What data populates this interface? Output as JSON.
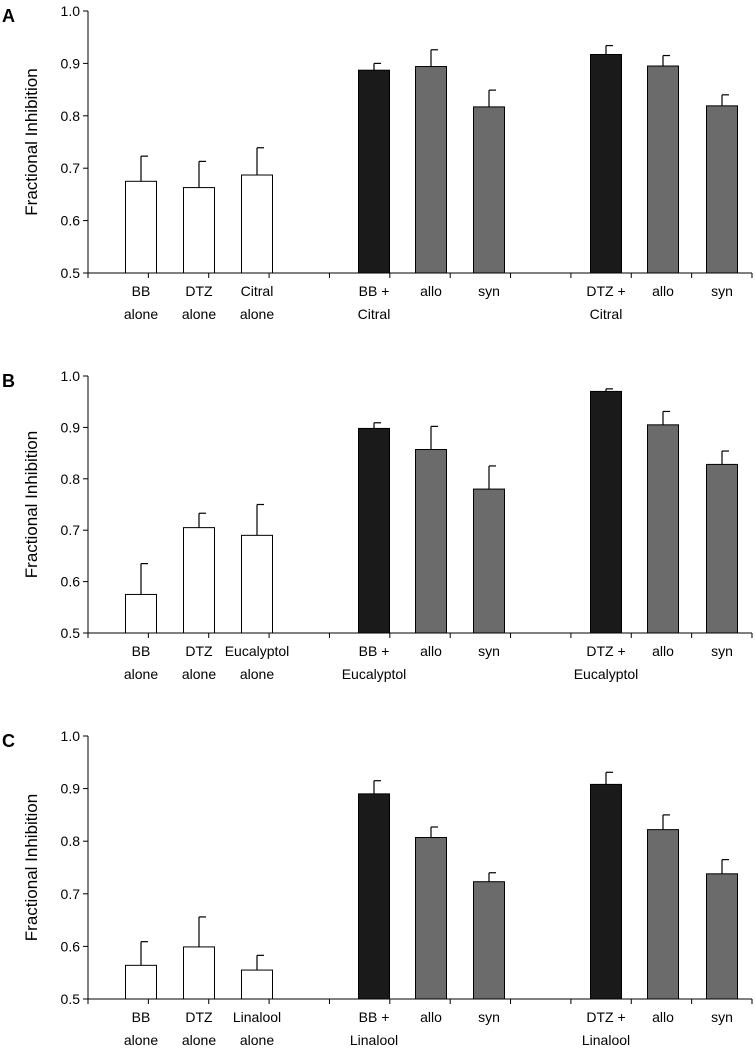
{
  "colors": {
    "alone": "#ffffff",
    "combo": "#1a1a1a",
    "model": "#6b6b6b",
    "outline": "#000000"
  },
  "chart_data": [
    {
      "type": "bar",
      "panel": "A",
      "ylabel": "Fractional Inhibition",
      "ylim": [
        0.5,
        1.0
      ],
      "yticks": [
        "0.5",
        "0.6",
        "0.7",
        "0.8",
        "0.9",
        "1.0"
      ],
      "categories": [
        [
          "BB",
          "alone"
        ],
        [
          "DTZ",
          "alone"
        ],
        [
          "Citral",
          "alone"
        ],
        [
          ""
        ],
        [
          "BB +",
          "Citral"
        ],
        [
          "allo"
        ],
        [
          "syn"
        ],
        [
          ""
        ],
        [
          "DTZ +",
          "Citral"
        ],
        [
          "allo"
        ],
        [
          "syn"
        ]
      ],
      "values": [
        0.675,
        0.663,
        0.687,
        null,
        0.887,
        0.894,
        0.817,
        null,
        0.917,
        0.895,
        0.819
      ],
      "errors": [
        0.048,
        0.05,
        0.052,
        null,
        0.013,
        0.032,
        0.032,
        null,
        0.017,
        0.02,
        0.021
      ],
      "groups": [
        "alone",
        "alone",
        "alone",
        null,
        "combo",
        "model",
        "model",
        null,
        "combo",
        "model",
        "model"
      ]
    },
    {
      "type": "bar",
      "panel": "B",
      "ylabel": "Fractional Inhibition",
      "ylim": [
        0.5,
        1.0
      ],
      "yticks": [
        "0.5",
        "0.6",
        "0.7",
        "0.8",
        "0.9",
        "1.0"
      ],
      "categories": [
        [
          "BB",
          "alone"
        ],
        [
          "DTZ",
          "alone"
        ],
        [
          "Eucalyptol",
          "alone"
        ],
        [
          ""
        ],
        [
          "BB +",
          "Eucalyptol"
        ],
        [
          "allo"
        ],
        [
          "syn"
        ],
        [
          ""
        ],
        [
          "DTZ +",
          "Eucalyptol"
        ],
        [
          "allo"
        ],
        [
          "syn"
        ]
      ],
      "values": [
        0.575,
        0.705,
        0.69,
        null,
        0.898,
        0.857,
        0.78,
        null,
        0.97,
        0.905,
        0.828
      ],
      "errors": [
        0.06,
        0.028,
        0.06,
        null,
        0.011,
        0.045,
        0.045,
        null,
        0.005,
        0.026,
        0.026
      ],
      "groups": [
        "alone",
        "alone",
        "alone",
        null,
        "combo",
        "model",
        "model",
        null,
        "combo",
        "model",
        "model"
      ]
    },
    {
      "type": "bar",
      "panel": "C",
      "ylabel": "Fractional Inhibition",
      "ylim": [
        0.5,
        1.0
      ],
      "yticks": [
        "0.5",
        "0.6",
        "0.7",
        "0.8",
        "0.9",
        "1.0"
      ],
      "categories": [
        [
          "BB",
          "alone"
        ],
        [
          "DTZ",
          "alone"
        ],
        [
          "Linalool",
          "alone"
        ],
        [
          ""
        ],
        [
          "BB +",
          "Linalool"
        ],
        [
          "allo"
        ],
        [
          "syn"
        ],
        [
          ""
        ],
        [
          "DTZ +",
          "Linalool"
        ],
        [
          "allo"
        ],
        [
          "syn"
        ]
      ],
      "values": [
        0.564,
        0.599,
        0.555,
        null,
        0.89,
        0.807,
        0.723,
        null,
        0.908,
        0.822,
        0.738
      ],
      "errors": [
        0.045,
        0.057,
        0.028,
        null,
        0.025,
        0.02,
        0.017,
        null,
        0.023,
        0.028,
        0.027
      ],
      "groups": [
        "alone",
        "alone",
        "alone",
        null,
        "combo",
        "model",
        "model",
        null,
        "combo",
        "model",
        "model"
      ]
    }
  ]
}
